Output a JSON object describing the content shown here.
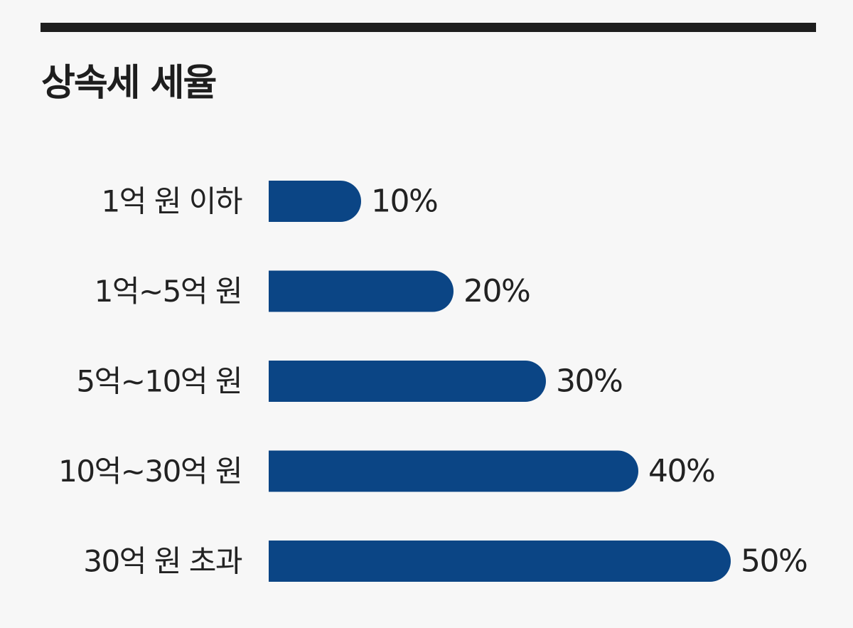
{
  "colors": {
    "bar": "#0b4585",
    "text": "#222222",
    "rule": "#1e1e1e",
    "background": "#f7f7f7"
  },
  "chart_data": {
    "type": "bar",
    "orientation": "horizontal",
    "title": "상속세 세율",
    "categories": [
      "1억 원 이하",
      "1억~5억 원",
      "5억~10억 원",
      "10억~30억 원",
      "30억 원 초과"
    ],
    "values": [
      10,
      20,
      30,
      40,
      50
    ],
    "value_labels": [
      "10%",
      "20%",
      "30%",
      "40%",
      "50%"
    ],
    "xlim": [
      0,
      50
    ],
    "grid": false,
    "legend": "none"
  }
}
